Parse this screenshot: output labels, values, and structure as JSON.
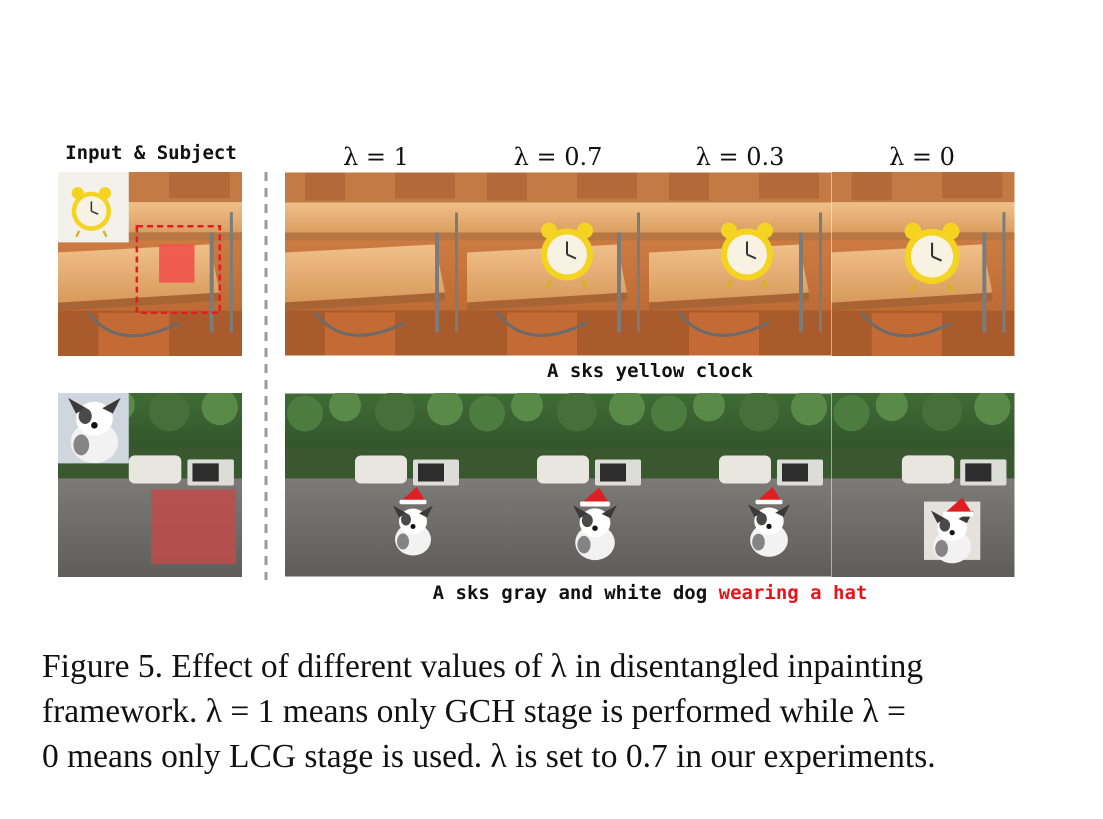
{
  "figure": {
    "input_header": "Input & Subject",
    "lambda_headers": [
      "λ = 1",
      "λ = 0.7",
      "λ = 0.3",
      "λ = 0"
    ],
    "rows": [
      {
        "prompt_main": "A sks yellow clock",
        "prompt_highlight": ""
      },
      {
        "prompt_main": "A sks gray and white dog ",
        "prompt_highlight": "wearing a hat"
      }
    ],
    "highlight_color": "#e8141a"
  },
  "caption": {
    "line1": "Figure 5. Effect of different values of λ in disentangled inpainting",
    "line2": "framework. λ = 1 means only GCH stage is performed while λ =",
    "line3": "0 means only LCG stage is used. λ is set to 0.7 in our experiments."
  }
}
